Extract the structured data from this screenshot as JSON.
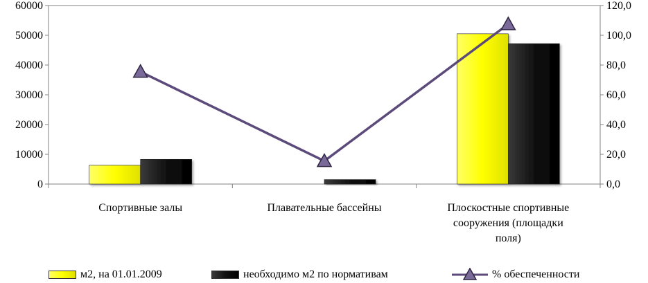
{
  "chart_data": {
    "type": "bar",
    "categories": [
      [
        "Спортивные залы"
      ],
      [
        "Плавательные бассейны"
      ],
      [
        "Плоскостные спортивные",
        "сооружения (площадки",
        "поля)"
      ]
    ],
    "series": [
      {
        "name": "м2, на 01.01.2009",
        "kind": "bar",
        "axis": "left",
        "color": "#ffff00",
        "values": [
          6300,
          0,
          50500
        ]
      },
      {
        "name": "необходимо м2 по нормативам",
        "kind": "bar",
        "axis": "left",
        "color": "#1a1a1a",
        "values": [
          8300,
          1500,
          47200
        ]
      },
      {
        "name": "% обеспеченности",
        "kind": "line",
        "axis": "right",
        "color": "#5b4a7a",
        "marker": "triangle",
        "values": [
          75.5,
          15.5,
          107.5
        ]
      }
    ],
    "y_left": {
      "min": 0,
      "max": 60000,
      "step": 10000,
      "ticks": [
        "0",
        "10000",
        "20000",
        "30000",
        "40000",
        "50000",
        "60000"
      ]
    },
    "y_right": {
      "min": 0,
      "max": 120,
      "step": 20,
      "ticks": [
        "0,0",
        "20,0",
        "40,0",
        "60,0",
        "80,0",
        "100,0",
        "120,0"
      ]
    },
    "grid": false,
    "legend_position": "bottom"
  }
}
